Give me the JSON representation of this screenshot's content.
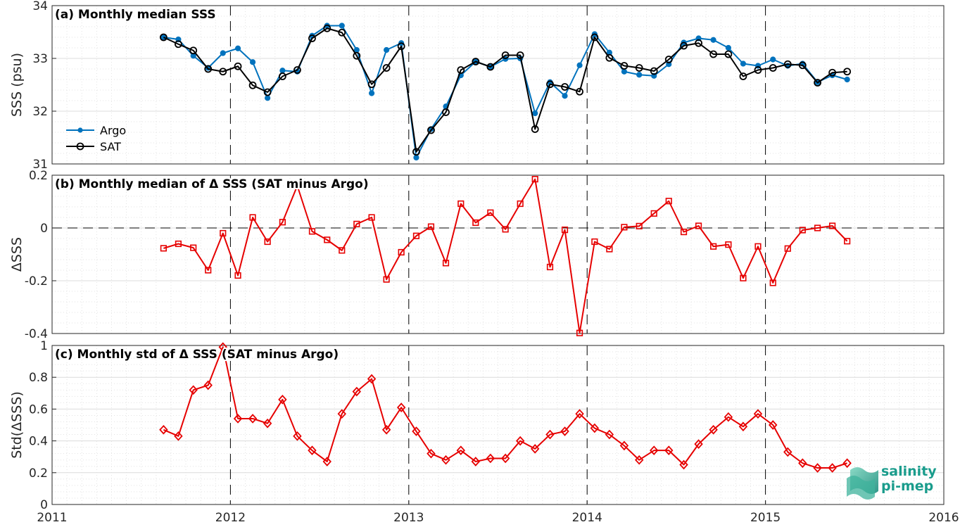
{
  "colors": {
    "argo": "#0072BD",
    "sat": "#000000",
    "diff": "#E60000",
    "logo": "#1a9c8c"
  },
  "logo": {
    "line1": "salinity",
    "line2": "pi-mep"
  },
  "chart_data": [
    {
      "type": "line",
      "panel": "a",
      "title": "(a) Monthly median SSS",
      "ylabel": "SSS (psu)",
      "ylim": [
        31,
        34
      ],
      "yticks": [
        "31",
        "32",
        "33",
        "34"
      ],
      "xlim": [
        2011,
        2016
      ],
      "xticks": [
        "2011",
        "2012",
        "2013",
        "2014",
        "2015",
        "2016"
      ],
      "grid": true,
      "legend_position": "lower-left",
      "x": [
        2011.625,
        2011.708,
        2011.792,
        2011.875,
        2011.958,
        2012.042,
        2012.125,
        2012.208,
        2012.292,
        2012.375,
        2012.458,
        2012.542,
        2012.625,
        2012.708,
        2012.792,
        2012.875,
        2012.958,
        2013.042,
        2013.125,
        2013.208,
        2013.292,
        2013.375,
        2013.458,
        2013.542,
        2013.625,
        2013.708,
        2013.792,
        2013.875,
        2013.958,
        2014.042,
        2014.125,
        2014.208,
        2014.292,
        2014.375,
        2014.458,
        2014.542,
        2014.625,
        2014.708,
        2014.792,
        2014.875,
        2014.958,
        2015.042,
        2015.125,
        2015.208,
        2015.292,
        2015.375,
        2015.458
      ],
      "series": [
        {
          "name": "Argo",
          "marker": "dot",
          "values": [
            33.4,
            33.36,
            33.05,
            32.82,
            33.1,
            33.19,
            32.93,
            32.25,
            32.77,
            32.75,
            33.43,
            33.62,
            33.62,
            33.16,
            32.34,
            33.16,
            33.29,
            31.12,
            31.66,
            32.09,
            32.68,
            32.94,
            32.84,
            32.99,
            33.0,
            31.96,
            32.55,
            32.29,
            32.87,
            33.46,
            33.11,
            32.75,
            32.69,
            32.67,
            32.89,
            33.3,
            33.38,
            33.35,
            33.2,
            32.9,
            32.86,
            32.98,
            32.86,
            32.9,
            32.55,
            32.68,
            32.6
          ]
        },
        {
          "name": "SAT",
          "marker": "circle",
          "values": [
            33.4,
            33.27,
            33.15,
            32.8,
            32.75,
            32.85,
            32.49,
            32.36,
            32.66,
            32.78,
            33.38,
            33.57,
            33.49,
            33.05,
            32.51,
            32.82,
            33.23,
            31.23,
            31.64,
            31.98,
            32.78,
            32.94,
            32.84,
            33.06,
            33.06,
            31.66,
            32.51,
            32.46,
            32.37,
            33.4,
            33.01,
            32.86,
            32.82,
            32.76,
            32.98,
            33.24,
            33.29,
            33.08,
            33.08,
            32.66,
            32.78,
            32.82,
            32.89,
            32.87,
            32.54,
            32.73,
            32.75
          ]
        }
      ]
    },
    {
      "type": "line",
      "panel": "b",
      "title": "(b) Monthly median of Δ SSS (SAT minus Argo)",
      "ylabel": "ΔSSS",
      "ylim": [
        -0.4,
        0.2
      ],
      "yticks": [
        "-0.4",
        "-0.2",
        "0",
        "0.2"
      ],
      "xlim": [
        2011,
        2016
      ],
      "grid": true,
      "reference_line": 0,
      "x": [
        2011.625,
        2011.708,
        2011.792,
        2011.875,
        2011.958,
        2012.042,
        2012.125,
        2012.208,
        2012.292,
        2012.375,
        2012.458,
        2012.542,
        2012.625,
        2012.708,
        2012.792,
        2012.875,
        2012.958,
        2013.042,
        2013.125,
        2013.208,
        2013.292,
        2013.375,
        2013.458,
        2013.542,
        2013.625,
        2013.708,
        2013.792,
        2013.875,
        2013.958,
        2014.042,
        2014.125,
        2014.208,
        2014.292,
        2014.375,
        2014.458,
        2014.542,
        2014.625,
        2014.708,
        2014.792,
        2014.875,
        2014.958,
        2015.042,
        2015.125,
        2015.208,
        2015.292,
        2015.375,
        2015.458
      ],
      "series": [
        {
          "marker": "square",
          "values": [
            -0.077,
            -0.06,
            -0.075,
            -0.16,
            -0.02,
            -0.18,
            0.04,
            -0.052,
            0.022,
            0.16,
            -0.013,
            -0.045,
            -0.085,
            0.015,
            0.04,
            -0.195,
            -0.092,
            -0.03,
            0.005,
            -0.133,
            0.092,
            0.02,
            0.058,
            -0.005,
            0.092,
            0.185,
            -0.148,
            -0.007,
            -0.398,
            -0.052,
            -0.08,
            0.003,
            0.007,
            0.055,
            0.102,
            -0.015,
            0.008,
            -0.07,
            -0.063,
            -0.19,
            -0.07,
            -0.208,
            -0.078,
            -0.008,
            0.0,
            0.008,
            -0.05
          ]
        }
      ]
    },
    {
      "type": "line",
      "panel": "c",
      "title": "(c) Monthly std of Δ SSS (SAT minus Argo)",
      "ylabel": "Std(ΔSSS)",
      "ylim": [
        0,
        1
      ],
      "yticks": [
        "0",
        "0.2",
        "0.4",
        "0.6",
        "0.8",
        "1"
      ],
      "xlim": [
        2011,
        2016
      ],
      "xticks": [
        "2011",
        "2012",
        "2013",
        "2014",
        "2015",
        "2016"
      ],
      "grid": true,
      "x": [
        2011.625,
        2011.708,
        2011.792,
        2011.875,
        2011.958,
        2012.042,
        2012.125,
        2012.208,
        2012.292,
        2012.375,
        2012.458,
        2012.542,
        2012.625,
        2012.708,
        2012.792,
        2012.875,
        2012.958,
        2013.042,
        2013.125,
        2013.208,
        2013.292,
        2013.375,
        2013.458,
        2013.542,
        2013.625,
        2013.708,
        2013.792,
        2013.875,
        2013.958,
        2014.042,
        2014.125,
        2014.208,
        2014.292,
        2014.375,
        2014.458,
        2014.542,
        2014.625,
        2014.708,
        2014.792,
        2014.875,
        2014.958,
        2015.042,
        2015.125,
        2015.208,
        2015.292,
        2015.375,
        2015.458
      ],
      "series": [
        {
          "marker": "diamond",
          "values": [
            0.47,
            0.43,
            0.72,
            0.75,
            0.99,
            0.54,
            0.54,
            0.51,
            0.66,
            0.43,
            0.34,
            0.27,
            0.57,
            0.71,
            0.79,
            0.47,
            0.61,
            0.46,
            0.32,
            0.28,
            0.34,
            0.27,
            0.29,
            0.29,
            0.4,
            0.35,
            0.44,
            0.46,
            0.57,
            0.48,
            0.44,
            0.37,
            0.28,
            0.34,
            0.34,
            0.25,
            0.38,
            0.47,
            0.55,
            0.49,
            0.57,
            0.5,
            0.33,
            0.26,
            0.23,
            0.23,
            0.26
          ]
        }
      ]
    }
  ]
}
